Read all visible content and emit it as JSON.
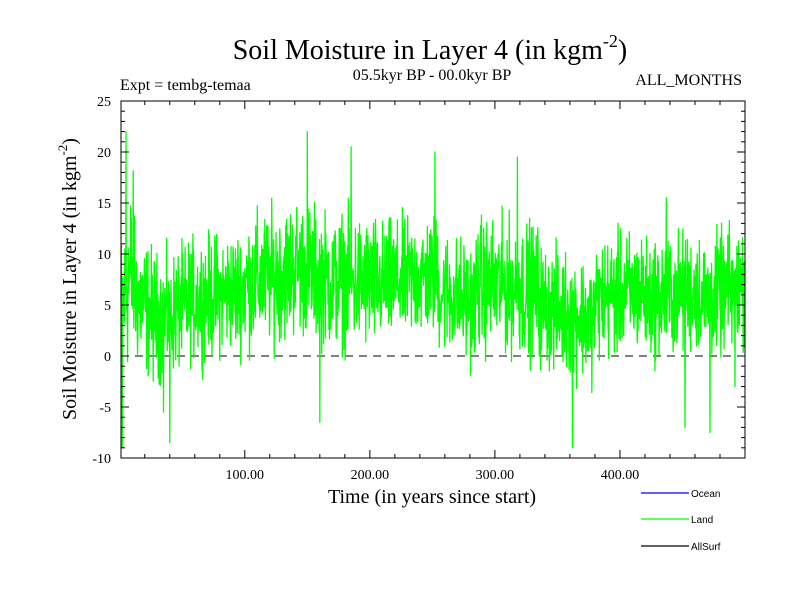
{
  "chart_data": {
    "type": "line",
    "title": "Soil Moisture in Layer 4 (in kgm",
    "title_superscript": "-2",
    "title_suffix": ")",
    "subtitle_left": "Expt = tembg-temaa",
    "subtitle_center": "05.5kyr BP - 00.0kyr BP",
    "subtitle_right": "ALL_MONTHS",
    "xlabel": "Time (in years since start)",
    "ylabel": "Soil Moisture in Layer 4 (in kgm",
    "ylabel_superscript": "-2",
    "ylabel_suffix": ")",
    "xlim": [
      1,
      500
    ],
    "ylim": [
      -10,
      25
    ],
    "x_ticks": [
      100,
      200,
      300,
      400
    ],
    "x_tick_labels": [
      "100.00",
      "200.00",
      "300.00",
      "400.00"
    ],
    "y_ticks": [
      -10,
      -5,
      0,
      5,
      10,
      15,
      20,
      25
    ],
    "y_tick_labels": [
      "-10",
      "-5",
      "0",
      "5",
      "10",
      "15",
      "20",
      "25"
    ],
    "reference_line": 0,
    "series": [
      {
        "name": "Ocean",
        "color": "#0000ff",
        "values": []
      },
      {
        "name": "Land",
        "color": "#00ff00",
        "points_per_year": 4,
        "segments": [
          {
            "start": 1,
            "end": 5,
            "from": 5,
            "to": 6,
            "amp": 6
          },
          {
            "start": 5,
            "end": 12,
            "from": 7,
            "to": 9,
            "amp": 7.5
          },
          {
            "start": 12,
            "end": 30,
            "from": 6,
            "to": 3.5,
            "amp": 5.5
          },
          {
            "start": 30,
            "end": 55,
            "from": 3.5,
            "to": 5,
            "amp": 5
          },
          {
            "start": 55,
            "end": 100,
            "from": 5.5,
            "to": 6.5,
            "amp": 5
          },
          {
            "start": 100,
            "end": 140,
            "from": 7,
            "to": 8.5,
            "amp": 5.5
          },
          {
            "start": 140,
            "end": 175,
            "from": 9,
            "to": 7,
            "amp": 5.5
          },
          {
            "start": 175,
            "end": 205,
            "from": 7.5,
            "to": 7,
            "amp": 5.5
          },
          {
            "start": 205,
            "end": 255,
            "from": 7,
            "to": 8,
            "amp": 5
          },
          {
            "start": 255,
            "end": 285,
            "from": 6.5,
            "to": 5,
            "amp": 5
          },
          {
            "start": 285,
            "end": 335,
            "from": 7,
            "to": 6.5,
            "amp": 5.5
          },
          {
            "start": 335,
            "end": 380,
            "from": 5,
            "to": 3.5,
            "amp": 5
          },
          {
            "start": 380,
            "end": 420,
            "from": 5.5,
            "to": 6.5,
            "amp": 5
          },
          {
            "start": 420,
            "end": 465,
            "from": 5.5,
            "to": 6.5,
            "amp": 5
          },
          {
            "start": 465,
            "end": 500,
            "from": 5.5,
            "to": 7,
            "amp": 5
          }
        ],
        "extremes": [
          {
            "x": 2,
            "y": -9
          },
          {
            "x": 5,
            "y": 22
          },
          {
            "x": 35,
            "y": -5.5
          },
          {
            "x": 40,
            "y": -8.5
          },
          {
            "x": 150,
            "y": 22
          },
          {
            "x": 160,
            "y": -6.5
          },
          {
            "x": 185,
            "y": 20.5
          },
          {
            "x": 252,
            "y": 20
          },
          {
            "x": 318,
            "y": 19.5
          },
          {
            "x": 362,
            "y": -9
          },
          {
            "x": 437,
            "y": 15.5
          },
          {
            "x": 452,
            "y": -7
          },
          {
            "x": 472,
            "y": -7.5
          },
          {
            "x": 492,
            "y": -3
          }
        ]
      },
      {
        "name": "AllSurf",
        "color": "#000000",
        "values": []
      }
    ],
    "legend_position": "bottom-right"
  }
}
